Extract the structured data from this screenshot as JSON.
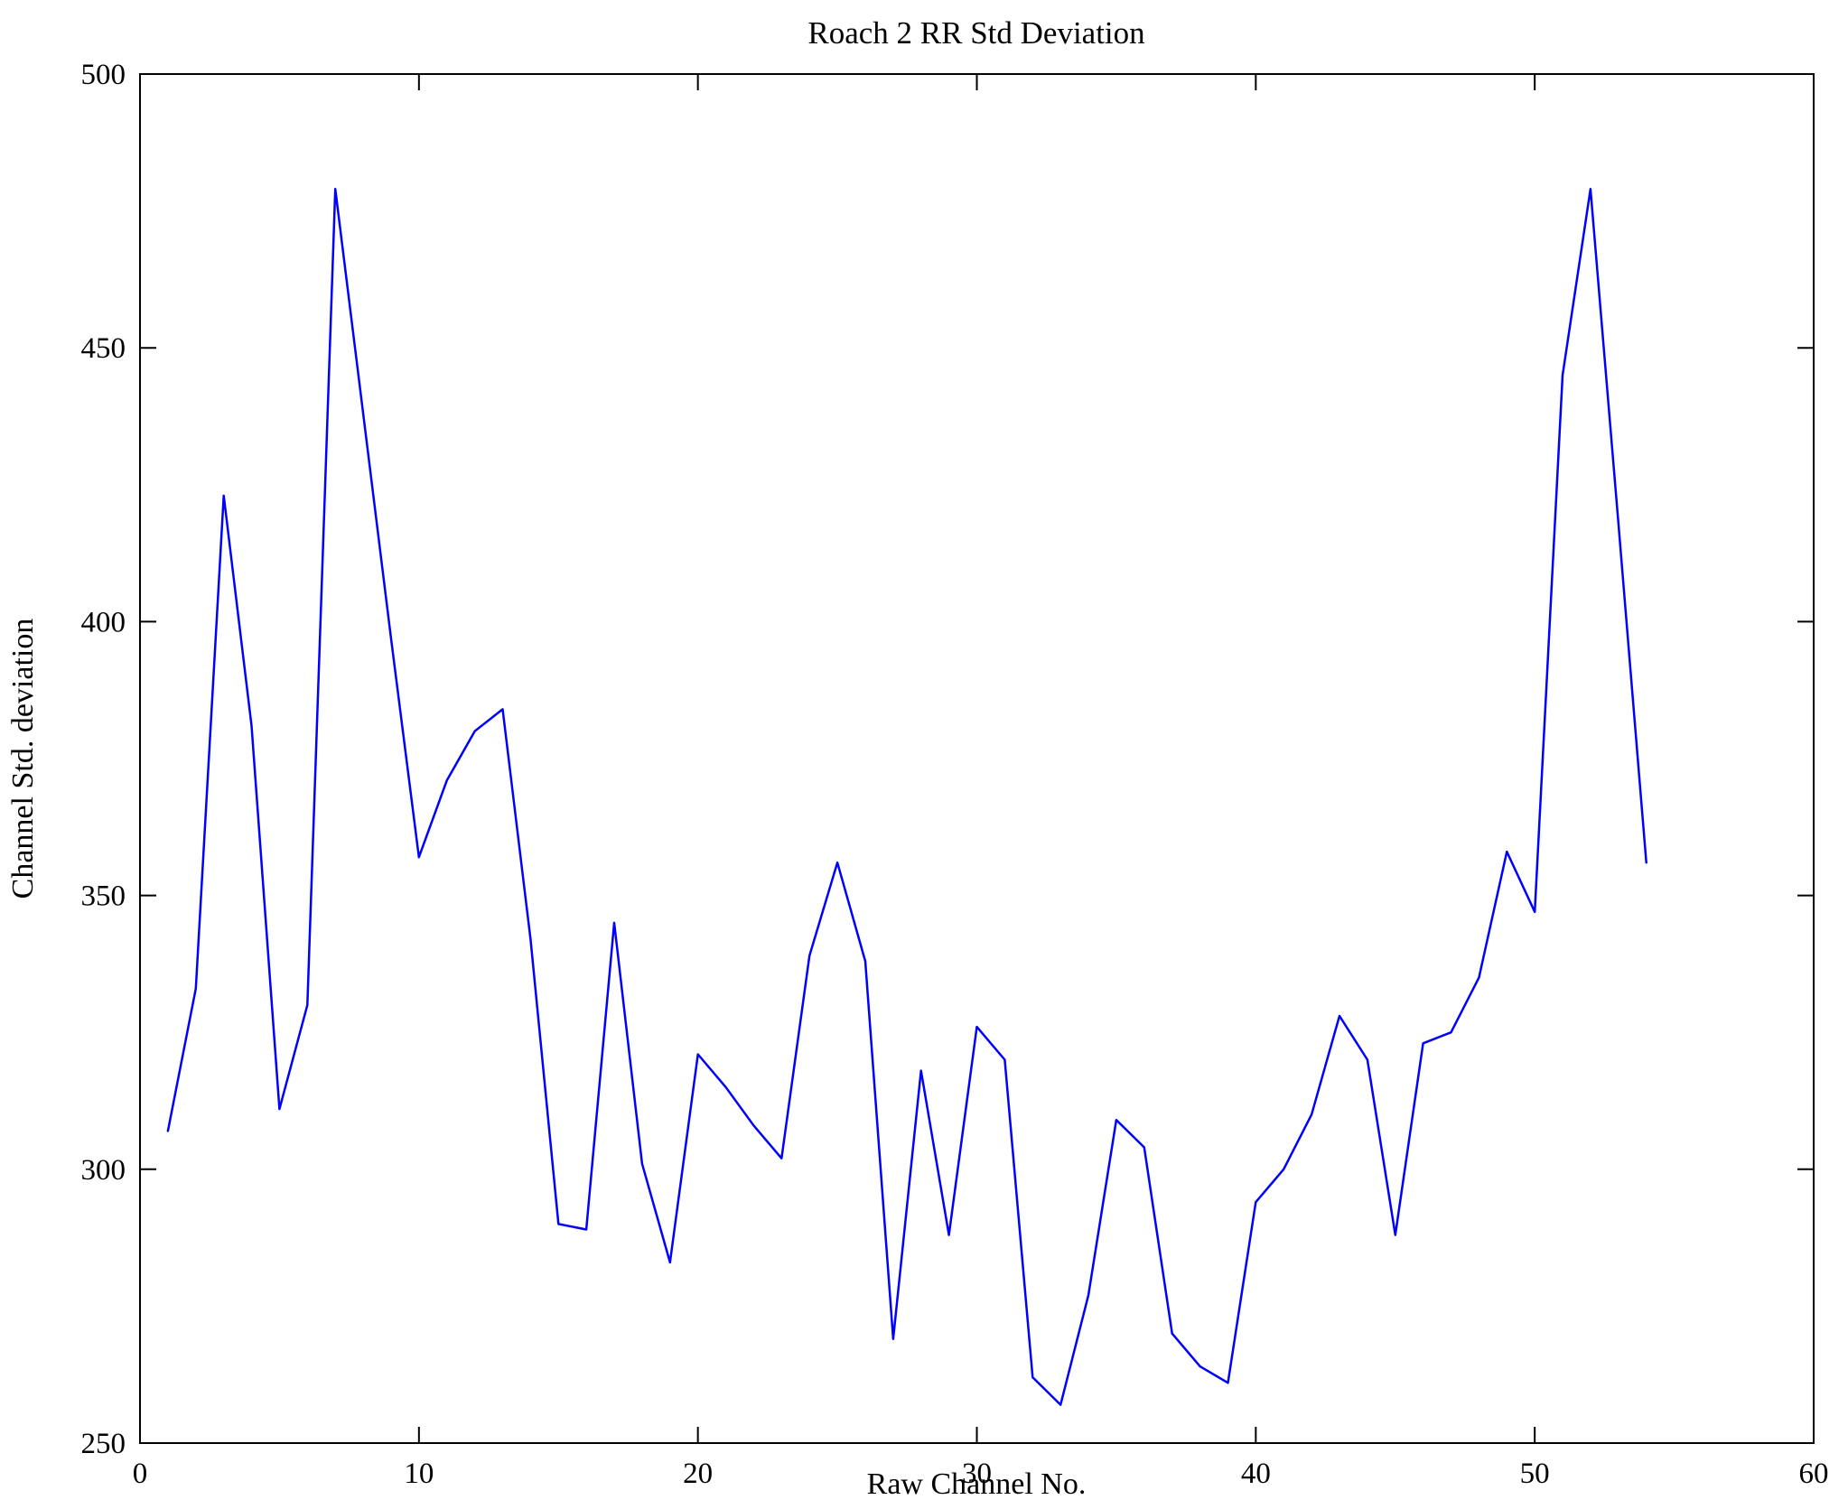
{
  "chart_data": {
    "type": "line",
    "title": "Roach 2 RR Std Deviation",
    "xlabel": "Raw Channel No.",
    "ylabel": "Channel Std. deviation",
    "xlim": [
      0,
      60
    ],
    "ylim": [
      250,
      500
    ],
    "xticks": [
      0,
      10,
      20,
      30,
      40,
      50,
      60
    ],
    "yticks": [
      250,
      300,
      350,
      400,
      450,
      500
    ],
    "grid": false,
    "legend": "none",
    "line_color": "#0000ff",
    "axis_color": "#000000",
    "series": [
      {
        "name": "Channel Std deviation",
        "x": [
          1,
          2,
          3,
          4,
          5,
          6,
          7,
          8,
          9,
          10,
          11,
          12,
          13,
          14,
          15,
          16,
          17,
          18,
          19,
          20,
          21,
          22,
          23,
          24,
          25,
          26,
          27,
          28,
          29,
          30,
          31,
          32,
          33,
          34,
          35,
          36,
          37,
          38,
          39,
          40,
          41,
          42,
          43,
          44,
          45,
          46,
          47,
          48,
          49,
          50,
          51,
          52,
          53,
          54
        ],
        "y": [
          307,
          333,
          423,
          381,
          311,
          330,
          479,
          438,
          397,
          357,
          371,
          380,
          384,
          342,
          290,
          289,
          345,
          301,
          283,
          321,
          315,
          308,
          302,
          339,
          356,
          338,
          269,
          318,
          288,
          326,
          320,
          262,
          257,
          277,
          309,
          304,
          270,
          264,
          261,
          294,
          300,
          310,
          328,
          320,
          288,
          323,
          325,
          335,
          358,
          347,
          445,
          479,
          418,
          356
        ]
      }
    ]
  }
}
